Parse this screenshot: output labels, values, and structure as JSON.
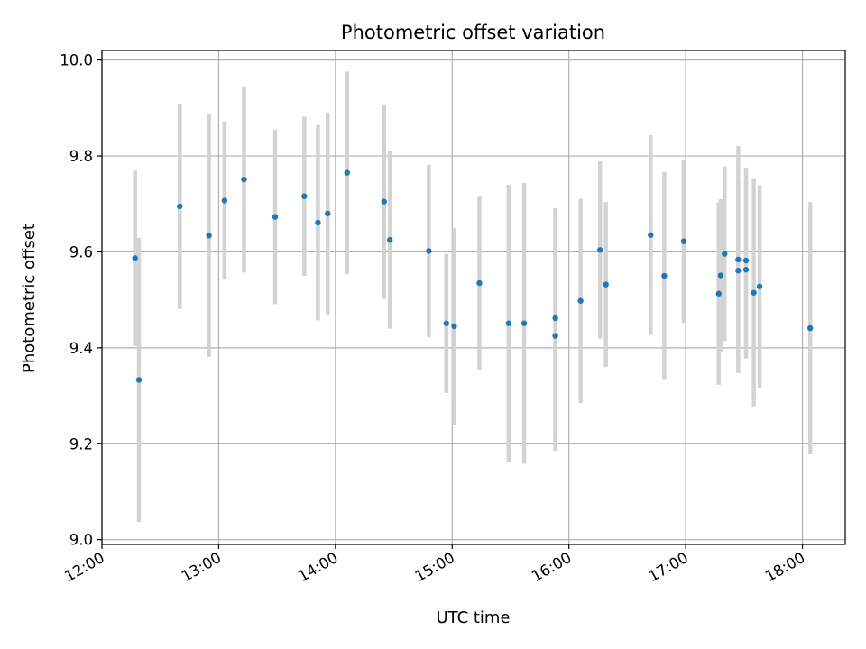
{
  "chart_data": {
    "type": "scatter",
    "title": "Photometric offset variation",
    "xlabel": "UTC time",
    "ylabel": "Photometric offset",
    "x_axis": "time",
    "xlim": [
      "12:00",
      "18:22"
    ],
    "ylim": [
      8.99,
      10.02
    ],
    "x_ticks": [
      "12:00",
      "13:00",
      "14:00",
      "15:00",
      "16:00",
      "17:00",
      "18:00"
    ],
    "y_ticks": [
      "9.0",
      "9.2",
      "9.4",
      "9.6",
      "9.8",
      "10.0"
    ],
    "grid": true,
    "point_color": "#1f77b4",
    "errorbar_color": "#d3d3d3",
    "points": [
      {
        "time": "12:17",
        "value": 9.587,
        "err": 0.183
      },
      {
        "time": "12:19",
        "value": 9.333,
        "err": 0.296
      },
      {
        "time": "12:40",
        "value": 9.695,
        "err": 0.214
      },
      {
        "time": "12:55",
        "value": 9.634,
        "err": 0.253
      },
      {
        "time": "13:03",
        "value": 9.707,
        "err": 0.165
      },
      {
        "time": "13:13",
        "value": 9.751,
        "err": 0.194
      },
      {
        "time": "13:29",
        "value": 9.673,
        "err": 0.182
      },
      {
        "time": "13:44",
        "value": 9.716,
        "err": 0.166
      },
      {
        "time": "13:51",
        "value": 9.661,
        "err": 0.204
      },
      {
        "time": "13:56",
        "value": 9.68,
        "err": 0.211
      },
      {
        "time": "14:06",
        "value": 9.765,
        "err": 0.211
      },
      {
        "time": "14:25",
        "value": 9.705,
        "err": 0.203
      },
      {
        "time": "14:28",
        "value": 9.625,
        "err": 0.185
      },
      {
        "time": "14:48",
        "value": 9.602,
        "err": 0.18
      },
      {
        "time": "14:57",
        "value": 9.451,
        "err": 0.145
      },
      {
        "time": "15:01",
        "value": 9.445,
        "err": 0.205
      },
      {
        "time": "15:14",
        "value": 9.535,
        "err": 0.182
      },
      {
        "time": "15:29",
        "value": 9.451,
        "err": 0.289
      },
      {
        "time": "15:37",
        "value": 9.451,
        "err": 0.293
      },
      {
        "time": "15:53",
        "value": 9.462,
        "err": 0.229
      },
      {
        "time": "15:53",
        "value": 9.425,
        "err": 0.24
      },
      {
        "time": "16:06",
        "value": 9.498,
        "err": 0.213
      },
      {
        "time": "16:16",
        "value": 9.604,
        "err": 0.185
      },
      {
        "time": "16:19",
        "value": 9.532,
        "err": 0.172
      },
      {
        "time": "16:42",
        "value": 9.635,
        "err": 0.208
      },
      {
        "time": "16:49",
        "value": 9.55,
        "err": 0.217
      },
      {
        "time": "16:59",
        "value": 9.622,
        "err": 0.17
      },
      {
        "time": "17:17",
        "value": 9.513,
        "err": 0.19
      },
      {
        "time": "17:18",
        "value": 9.551,
        "err": 0.159
      },
      {
        "time": "17:20",
        "value": 9.596,
        "err": 0.182
      },
      {
        "time": "17:27",
        "value": 9.561,
        "err": 0.186
      },
      {
        "time": "17:27",
        "value": 9.584,
        "err": 0.237
      },
      {
        "time": "17:31",
        "value": 9.563,
        "err": 0.185
      },
      {
        "time": "17:31",
        "value": 9.582,
        "err": 0.194
      },
      {
        "time": "17:35",
        "value": 9.515,
        "err": 0.237
      },
      {
        "time": "17:38",
        "value": 9.528,
        "err": 0.211
      },
      {
        "time": "18:04",
        "value": 9.441,
        "err": 0.263
      }
    ]
  }
}
